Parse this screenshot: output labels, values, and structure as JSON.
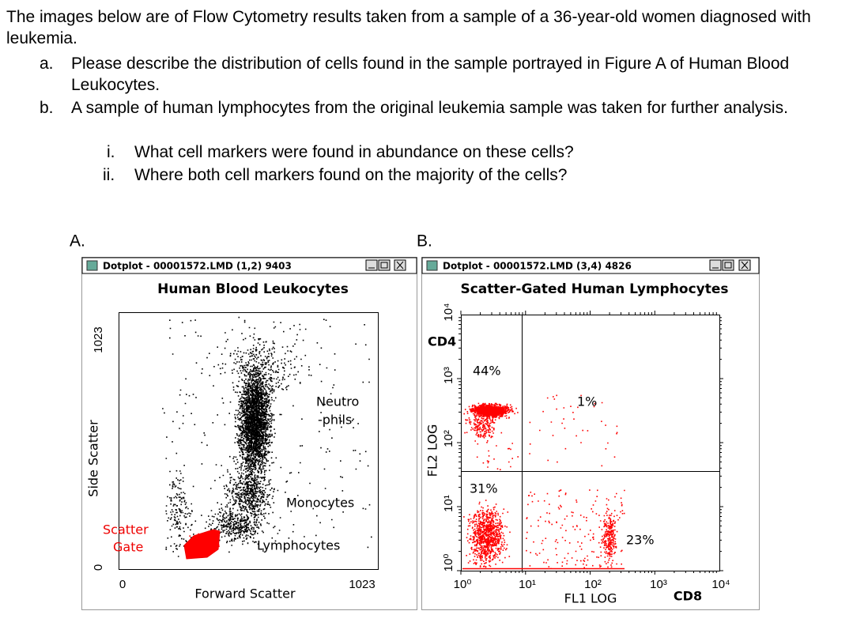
{
  "question": {
    "intro": "The images below are of Flow Cytometry results taken from a sample of a 36-year-old women diagnosed with leukemia.",
    "items": [
      {
        "marker": "a.",
        "text": "Please describe the distribution of cells found in the sample portrayed in Figure A of Human Blood Leukocytes."
      },
      {
        "marker": "b.",
        "text": "A sample of human lymphocytes from the original leukemia sample was taken for further analysis.",
        "subitems": [
          {
            "marker": "i.",
            "text": "What cell markers were found in abundance on these cells?"
          },
          {
            "marker": "ii.",
            "text": "Where both cell markers found on the majority of the cells?"
          }
        ]
      }
    ]
  },
  "figures": [
    {
      "label": "A.",
      "window_title": "Dotplot - 00001572.LMD (1,2) 9403",
      "plot_title": "Human Blood Leukocytes",
      "x_axis": {
        "title": "Forward Scatter",
        "ticks": [
          "0",
          "1023"
        ]
      },
      "y_axis": {
        "title": "Side Scatter",
        "ticks": [
          "0",
          "1023"
        ]
      },
      "annotations": [
        "Neutro",
        "-phils",
        "Monocytes",
        "Lymphocytes",
        "Scatter",
        "Gate"
      ]
    },
    {
      "label": "B.",
      "window_title": "Dotplot - 00001572.LMD (3,4) 4826",
      "plot_title": "Scatter-Gated Human Lymphocytes",
      "x_axis": {
        "title": "FL1 LOG",
        "marker": "CD8",
        "ticks": [
          "10⁰",
          "10¹",
          "10²",
          "10³",
          "10⁴"
        ]
      },
      "y_axis": {
        "title": "FL2 LOG",
        "marker": "CD4",
        "ticks": [
          "10⁰",
          "10¹",
          "10²",
          "10³",
          "10⁴"
        ]
      },
      "quadrants": [
        "44%",
        "1%",
        "31%",
        "23%"
      ]
    }
  ]
}
